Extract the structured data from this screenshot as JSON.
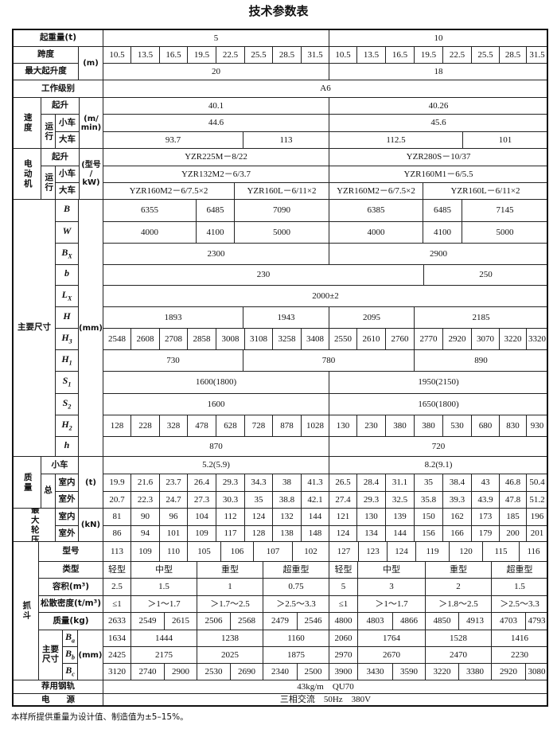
{
  "header": {
    "title": "技术参数表"
  },
  "labels": {
    "capacity": "起重量(t)",
    "span": "跨度",
    "max_lift": "最大起升度",
    "unit_m": "(m)",
    "duty": "工作级别",
    "speed": "速度",
    "hoist": "起升",
    "travel": "运行",
    "trolley": "小车",
    "crane": "大车",
    "unit_speed": [
      "(m/",
      "min)"
    ],
    "motor": "电动机",
    "unit_motor": [
      "(型号",
      "/",
      "kW)"
    ],
    "dims": "主要尺寸",
    "unit_mm": "(mm)",
    "mass": "质量",
    "total": "总",
    "indoor": "室内",
    "outdoor": "室外",
    "unit_t": "(t)",
    "wheel": "最大轮压",
    "unit_kn": "(kN)",
    "grab": "抓斗",
    "grab_model": "型号",
    "grab_type": "类型",
    "volume": "容积(m³)",
    "density": "松散密度(t/m³)",
    "grab_mass": "质量(kg)",
    "grab_dims": "主要尺寸",
    "rail": "荐用钢轨",
    "power": "电　　源"
  },
  "symbols": {
    "B": {
      "s": "B",
      "sub": ""
    },
    "W": {
      "s": "W",
      "sub": ""
    },
    "Bx": {
      "s": "B",
      "sub": "X"
    },
    "b": {
      "s": "b",
      "sub": ""
    },
    "Lx": {
      "s": "L",
      "sub": "X"
    },
    "H": {
      "s": "H",
      "sub": ""
    },
    "H3": {
      "s": "H",
      "sub": "3"
    },
    "H1": {
      "s": "H",
      "sub": "1"
    },
    "S1": {
      "s": "S",
      "sub": "1"
    },
    "S2": {
      "s": "S",
      "sub": "2"
    },
    "H2": {
      "s": "H",
      "sub": "2"
    },
    "h": {
      "s": "h",
      "sub": ""
    },
    "Ba": {
      "s": "B",
      "sub": "a"
    },
    "Bb": {
      "s": "B",
      "sub": "b"
    },
    "Bc": {
      "s": "B",
      "sub": "c"
    }
  },
  "values": {
    "capacity": [
      "5",
      "10"
    ],
    "span": [
      "10.5",
      "13.5",
      "16.5",
      "19.5",
      "22.5",
      "25.5",
      "28.5",
      "31.5",
      "10.5",
      "13.5",
      "16.5",
      "19.5",
      "22.5",
      "25.5",
      "28.5",
      "31.5"
    ],
    "max_lift": [
      "20",
      "18"
    ],
    "duty": [
      "A6"
    ],
    "speed_hoist": [
      "40.1",
      "40.26"
    ],
    "speed_trolley": [
      "44.6",
      "45.6"
    ],
    "speed_crane": [
      "93.7",
      "113",
      "112.5",
      "101"
    ],
    "motor_hoist": [
      "YZR225M－8/22",
      "YZR280S－10/37"
    ],
    "motor_trolley": [
      "YZR132M2－6/3.7",
      "YZR160M1－6/5.5"
    ],
    "motor_crane": [
      "YZR160M2－6/7.5×2",
      "YZR160L－6/11×2",
      "YZR160M2－6/7.5×2",
      "YZR160L－6/11×2"
    ],
    "B": [
      "6355",
      "6485",
      "7090",
      "6385",
      "6485",
      "7145"
    ],
    "W": [
      "4000",
      "4100",
      "5000",
      "4000",
      "4100",
      "5000"
    ],
    "Bx": [
      "2300",
      "2900"
    ],
    "b": [
      "230",
      "250"
    ],
    "Lx": [
      "2000±2"
    ],
    "H": [
      "1893",
      "1943",
      "2095",
      "2185"
    ],
    "H3": [
      "2548",
      "2608",
      "2708",
      "2858",
      "3008",
      "3108",
      "3258",
      "3408",
      "2550",
      "2610",
      "2760",
      "2770",
      "2920",
      "3070",
      "3220",
      "3320"
    ],
    "H1": [
      "730",
      "780",
      "890"
    ],
    "S1": [
      "1600(1800)",
      "1950(2150)"
    ],
    "S2": [
      "1600",
      "1650(1800)"
    ],
    "H2": [
      "128",
      "228",
      "328",
      "478",
      "628",
      "728",
      "878",
      "1028",
      "130",
      "230",
      "380",
      "380",
      "530",
      "680",
      "830",
      "930"
    ],
    "h": [
      "870",
      "720"
    ],
    "mass_trolley": [
      "5.2(5.9)",
      "8.2(9.1)"
    ],
    "mass_indoor": [
      "19.9",
      "21.6",
      "23.7",
      "26.4",
      "29.3",
      "34.3",
      "38",
      "41.3",
      "26.5",
      "28.4",
      "31.1",
      "35",
      "38.4",
      "43",
      "46.8",
      "50.4"
    ],
    "mass_outdoor": [
      "20.7",
      "22.3",
      "24.7",
      "27.3",
      "30.3",
      "35",
      "38.8",
      "42.1",
      "27.4",
      "29.3",
      "32.5",
      "35.8",
      "39.3",
      "43.9",
      "47.8",
      "51.2"
    ],
    "wheel_indoor": [
      "81",
      "90",
      "96",
      "104",
      "112",
      "124",
      "132",
      "144",
      "121",
      "130",
      "139",
      "150",
      "162",
      "173",
      "185",
      "196"
    ],
    "wheel_outdoor": [
      "86",
      "94",
      "101",
      "109",
      "117",
      "128",
      "138",
      "148",
      "124",
      "134",
      "144",
      "156",
      "166",
      "179",
      "200",
      "201"
    ],
    "grab_model": [
      "113",
      "109",
      "110",
      "105",
      "106",
      "107",
      "102",
      "127",
      "123",
      "124",
      "119",
      "120",
      "115",
      "116"
    ],
    "grab_type": [
      "轻型",
      "中型",
      "重型",
      "超重型",
      "轻型",
      "中型",
      "重型",
      "超重型"
    ],
    "volume": [
      "2.5",
      "1.5",
      "1",
      "0.75",
      "5",
      "3",
      "2",
      "1.5"
    ],
    "density": [
      "≤1",
      "＞1～1.7",
      "＞1.7～2.5",
      "＞2.5～3.3",
      "≤1",
      "＞1～1.7",
      "＞1.8～2.5",
      "＞2.5～3.3"
    ],
    "grab_mass": [
      "2633",
      "2549",
      "2615",
      "2506",
      "2568",
      "2479",
      "2546",
      "4800",
      "4803",
      "4866",
      "4850",
      "4913",
      "4703",
      "4793"
    ],
    "Ba": [
      "1634",
      "1444",
      "1238",
      "1160",
      "2060",
      "1764",
      "1528",
      "1416"
    ],
    "Bb": [
      "2425",
      "2175",
      "2025",
      "1875",
      "2970",
      "2670",
      "2470",
      "2230"
    ],
    "Bc": [
      "3120",
      "2740",
      "2900",
      "2530",
      "2690",
      "2340",
      "2500",
      "3900",
      "3430",
      "3590",
      "3220",
      "3380",
      "2920",
      "3080"
    ],
    "rail": [
      "43kg/m　QU70"
    ],
    "power": [
      "三相交流　50Hz　380V"
    ]
  },
  "footnote": "本样所提供重量为设计值、制造值为±5–15%。"
}
